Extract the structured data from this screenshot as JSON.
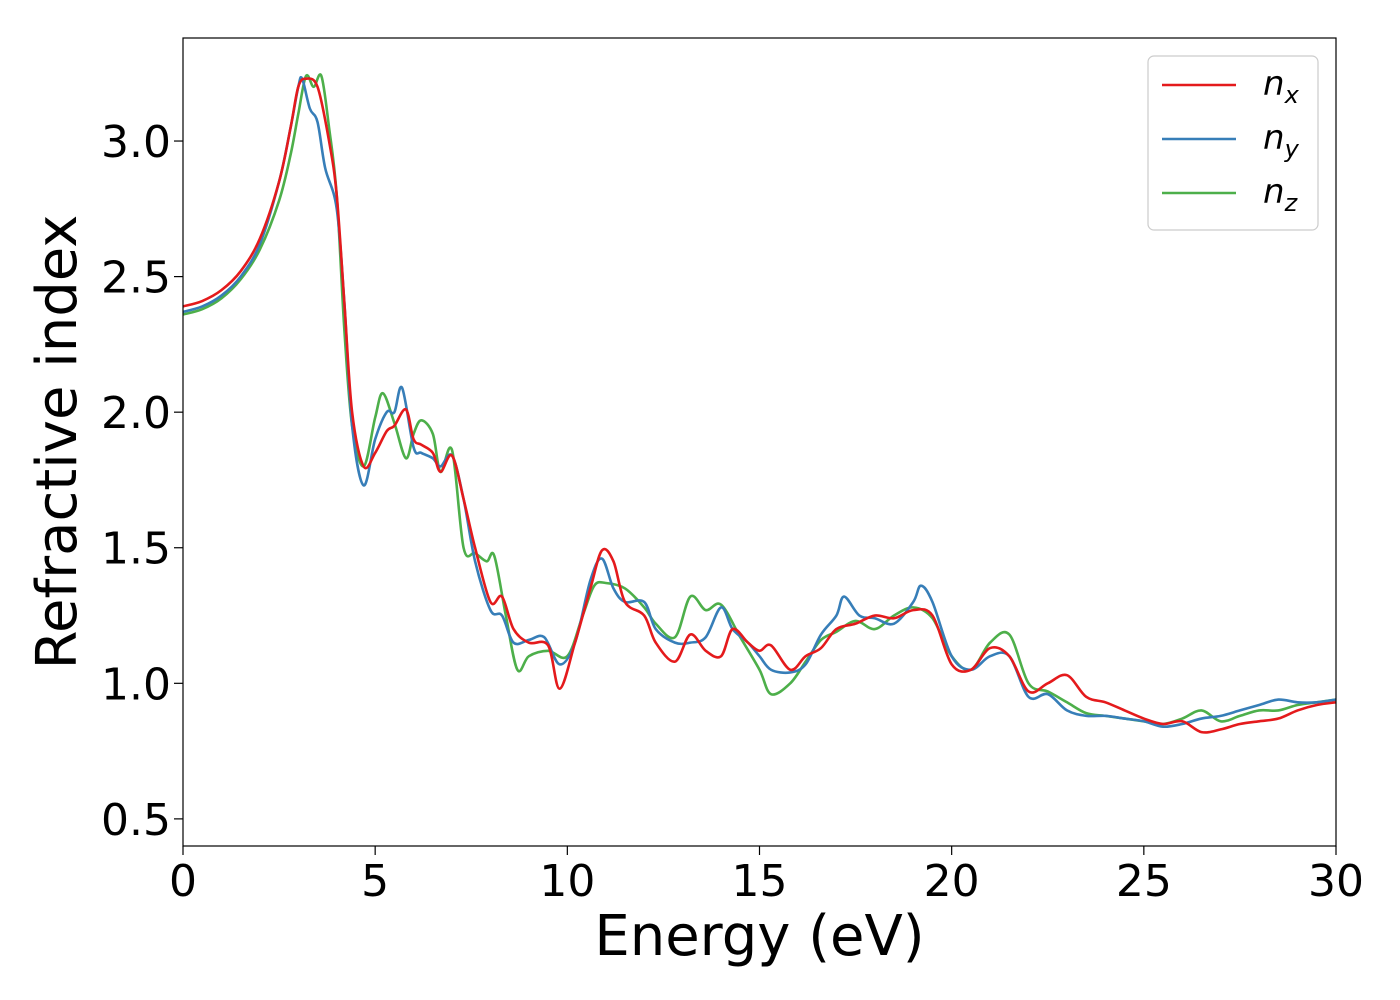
{
  "chart_data": {
    "type": "line",
    "xlabel": "Energy (eV)",
    "ylabel": "Refractive index",
    "xlim": [
      0,
      30
    ],
    "ylim": [
      0.4,
      3.38
    ],
    "xticks": [
      "0",
      "5",
      "10",
      "15",
      "20",
      "25",
      "30"
    ],
    "yticks": [
      "0.5",
      "1.0",
      "1.5",
      "2.0",
      "2.5",
      "3.0"
    ],
    "grid": false,
    "legend_position": "top-right",
    "series": [
      {
        "name": "n",
        "sub": "x",
        "color": "#e41a1c",
        "x": [
          0,
          0.5,
          1.0,
          1.5,
          2.0,
          2.5,
          2.8,
          3.0,
          3.2,
          3.5,
          3.8,
          4.0,
          4.2,
          4.4,
          4.7,
          5.0,
          5.3,
          5.5,
          5.8,
          6.0,
          6.2,
          6.5,
          6.7,
          7.0,
          7.3,
          7.6,
          8.0,
          8.3,
          8.6,
          9.0,
          9.5,
          9.8,
          10.2,
          10.6,
          10.9,
          11.2,
          11.5,
          12.0,
          12.3,
          12.8,
          13.2,
          13.6,
          14.0,
          14.3,
          14.7,
          15.0,
          15.3,
          15.8,
          16.2,
          16.6,
          17.0,
          17.5,
          18.0,
          18.5,
          19.0,
          19.5,
          20.0,
          20.5,
          21.0,
          21.5,
          22.0,
          22.5,
          23.0,
          23.5,
          24.0,
          24.5,
          25.0,
          25.5,
          26.0,
          26.5,
          27.0,
          27.5,
          28.0,
          28.5,
          29.0,
          29.5,
          30.0
        ],
        "y": [
          2.39,
          2.41,
          2.45,
          2.52,
          2.64,
          2.85,
          3.05,
          3.2,
          3.23,
          3.2,
          3.0,
          2.8,
          2.4,
          2.0,
          1.8,
          1.85,
          1.93,
          1.95,
          2.01,
          1.9,
          1.88,
          1.85,
          1.78,
          1.84,
          1.68,
          1.5,
          1.3,
          1.32,
          1.2,
          1.15,
          1.14,
          0.98,
          1.15,
          1.35,
          1.49,
          1.45,
          1.3,
          1.25,
          1.15,
          1.08,
          1.18,
          1.12,
          1.1,
          1.2,
          1.15,
          1.12,
          1.14,
          1.05,
          1.1,
          1.13,
          1.2,
          1.22,
          1.25,
          1.24,
          1.27,
          1.25,
          1.07,
          1.05,
          1.13,
          1.1,
          0.97,
          1.0,
          1.03,
          0.95,
          0.93,
          0.9,
          0.87,
          0.85,
          0.86,
          0.82,
          0.83,
          0.85,
          0.86,
          0.87,
          0.9,
          0.92,
          0.93
        ]
      },
      {
        "name": "n",
        "sub": "y",
        "color": "#377eb8",
        "x": [
          0,
          0.5,
          1.0,
          1.5,
          2.0,
          2.5,
          2.8,
          3.0,
          3.1,
          3.3,
          3.5,
          3.7,
          4.0,
          4.2,
          4.4,
          4.7,
          5.0,
          5.3,
          5.5,
          5.7,
          6.0,
          6.2,
          6.5,
          6.7,
          7.0,
          7.3,
          7.6,
          8.0,
          8.3,
          8.6,
          9.0,
          9.4,
          9.8,
          10.2,
          10.6,
          10.9,
          11.2,
          11.5,
          12.0,
          12.3,
          12.8,
          13.2,
          13.6,
          14.0,
          14.3,
          14.7,
          15.0,
          15.3,
          15.8,
          16.2,
          16.6,
          17.0,
          17.2,
          17.6,
          18.0,
          18.5,
          19.0,
          19.2,
          19.5,
          20.0,
          20.5,
          21.0,
          21.5,
          22.0,
          22.5,
          23.0,
          23.5,
          24.0,
          24.5,
          25.0,
          25.5,
          26.0,
          26.5,
          27.0,
          27.5,
          28.0,
          28.5,
          29.0,
          29.5,
          30.0
        ],
        "y": [
          2.37,
          2.39,
          2.43,
          2.5,
          2.62,
          2.85,
          3.05,
          3.2,
          3.23,
          3.12,
          3.07,
          2.9,
          2.75,
          2.4,
          1.95,
          1.73,
          1.9,
          2.0,
          2.0,
          2.09,
          1.87,
          1.85,
          1.83,
          1.8,
          1.84,
          1.68,
          1.45,
          1.27,
          1.25,
          1.15,
          1.16,
          1.17,
          1.07,
          1.15,
          1.38,
          1.46,
          1.35,
          1.3,
          1.3,
          1.2,
          1.15,
          1.15,
          1.17,
          1.28,
          1.2,
          1.15,
          1.1,
          1.05,
          1.04,
          1.07,
          1.18,
          1.25,
          1.32,
          1.25,
          1.24,
          1.22,
          1.3,
          1.36,
          1.3,
          1.1,
          1.05,
          1.1,
          1.1,
          0.95,
          0.96,
          0.9,
          0.88,
          0.88,
          0.87,
          0.86,
          0.84,
          0.85,
          0.87,
          0.88,
          0.9,
          0.92,
          0.94,
          0.93,
          0.93,
          0.94
        ]
      },
      {
        "name": "n",
        "sub": "z",
        "color": "#4daf4a",
        "x": [
          0,
          0.5,
          1.0,
          1.5,
          2.0,
          2.5,
          2.8,
          3.0,
          3.2,
          3.4,
          3.6,
          3.8,
          4.0,
          4.2,
          4.4,
          4.7,
          5.0,
          5.2,
          5.5,
          5.8,
          6.0,
          6.2,
          6.5,
          6.7,
          7.0,
          7.3,
          7.6,
          7.9,
          8.1,
          8.4,
          8.7,
          9.0,
          9.5,
          10.0,
          10.4,
          10.7,
          11.0,
          11.5,
          12.0,
          12.3,
          12.8,
          13.2,
          13.6,
          14.0,
          14.5,
          15.0,
          15.3,
          15.8,
          16.2,
          16.6,
          17.0,
          17.5,
          18.0,
          18.5,
          19.0,
          19.5,
          20.0,
          20.5,
          21.0,
          21.5,
          22.0,
          22.5,
          23.0,
          23.5,
          24.0,
          24.5,
          25.0,
          25.5,
          26.0,
          26.5,
          27.0,
          27.5,
          28.0,
          28.5,
          29.0,
          29.5,
          30.0
        ],
        "y": [
          2.36,
          2.38,
          2.42,
          2.49,
          2.6,
          2.78,
          2.95,
          3.1,
          3.24,
          3.2,
          3.24,
          3.05,
          2.8,
          2.3,
          1.95,
          1.8,
          1.98,
          2.07,
          1.96,
          1.83,
          1.92,
          1.97,
          1.92,
          1.78,
          1.86,
          1.5,
          1.48,
          1.45,
          1.47,
          1.25,
          1.05,
          1.1,
          1.12,
          1.1,
          1.25,
          1.36,
          1.37,
          1.35,
          1.28,
          1.22,
          1.17,
          1.32,
          1.27,
          1.29,
          1.17,
          1.05,
          0.96,
          1.0,
          1.08,
          1.16,
          1.19,
          1.23,
          1.2,
          1.25,
          1.28,
          1.24,
          1.1,
          1.05,
          1.15,
          1.18,
          1.0,
          0.97,
          0.93,
          0.89,
          0.88,
          0.87,
          0.86,
          0.85,
          0.87,
          0.9,
          0.86,
          0.88,
          0.9,
          0.9,
          0.92,
          0.93,
          0.94
        ]
      }
    ]
  }
}
